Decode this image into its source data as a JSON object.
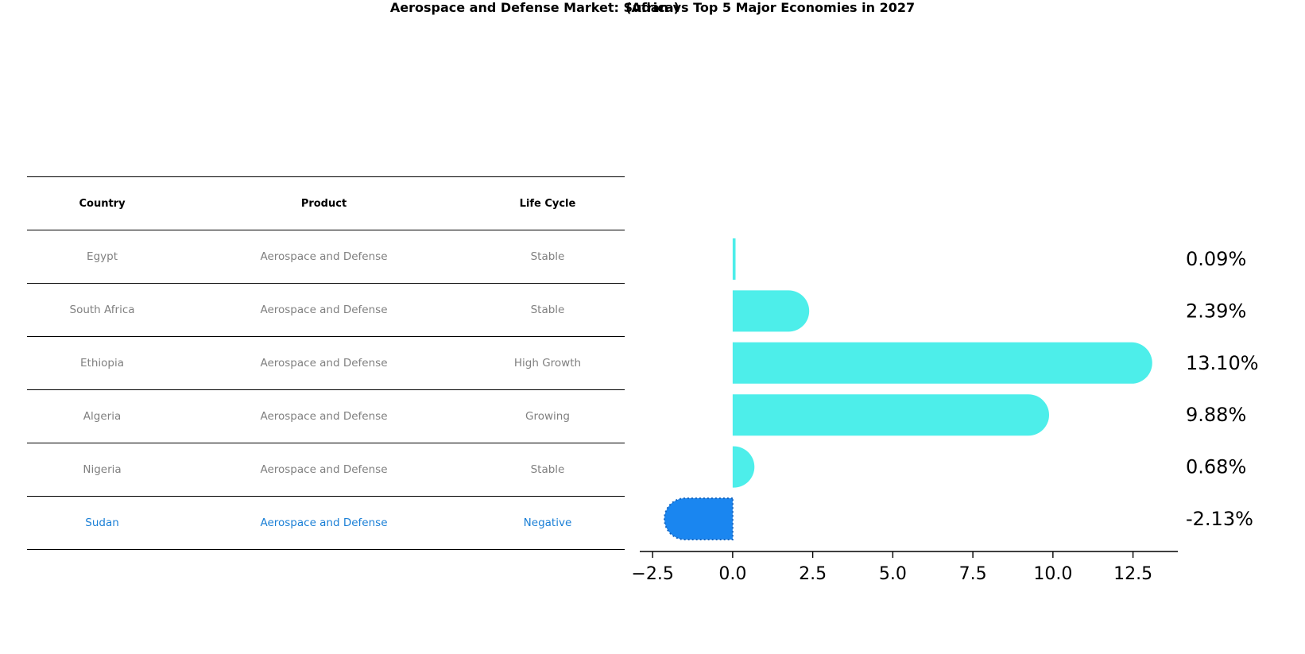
{
  "title": "Aerospace and Defense Market: Sudan vs Top 5 Major Economies in 2027",
  "subtitle": "(Africa)",
  "table": {
    "headers": [
      "Country",
      "Product",
      "Life Cycle"
    ],
    "rows": [
      {
        "country": "Egypt",
        "product": "Aerospace and Defense",
        "life_cycle": "Stable"
      },
      {
        "country": "South Africa",
        "product": "Aerospace and Defense",
        "life_cycle": "Stable"
      },
      {
        "country": "Ethiopia",
        "product": "Aerospace and Defense",
        "life_cycle": "High Growth"
      },
      {
        "country": "Algeria",
        "product": "Aerospace and Defense",
        "life_cycle": "Growing"
      },
      {
        "country": "Nigeria",
        "product": "Aerospace and Defense",
        "life_cycle": "Stable"
      },
      {
        "country": "Sudan",
        "product": "Aerospace and Defense",
        "life_cycle": "Negative"
      }
    ]
  },
  "chart_data": {
    "type": "bar",
    "orientation": "horizontal",
    "categories": [
      "Egypt",
      "South Africa",
      "Ethiopia",
      "Algeria",
      "Nigeria",
      "Sudan"
    ],
    "values": [
      0.09,
      2.39,
      13.1,
      9.88,
      0.68,
      -2.13
    ],
    "value_labels": [
      "0.09%",
      "2.39%",
      "13.10%",
      "9.88%",
      "0.68%",
      "-2.13%"
    ],
    "xlim": [
      -2.9,
      13.9
    ],
    "xticks": [
      -2.5,
      0.0,
      2.5,
      5.0,
      7.5,
      10.0,
      12.5
    ],
    "xtick_labels": [
      "−2.5",
      "0.0",
      "2.5",
      "5.0",
      "7.5",
      "10.0",
      "12.5"
    ],
    "grid": false,
    "colors": {
      "default": "#4deeea",
      "highlight": "#1a86f0"
    },
    "highlight": "Sudan"
  }
}
